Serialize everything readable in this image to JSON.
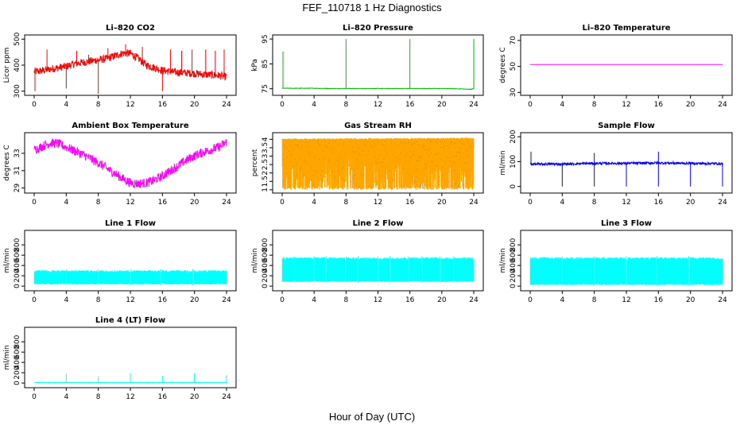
{
  "figure": {
    "title": "FEF_110718  1 Hz Diagnostics",
    "xlabel": "Hour of Day (UTC)"
  },
  "chart_data": [
    {
      "type": "line",
      "title": "Li–820 CO2",
      "ylabel": "Licor ppm",
      "color": "#ff0000",
      "xlim": [
        0,
        24
      ],
      "ylim": [
        290,
        510
      ],
      "yticks": [
        300,
        400,
        500
      ],
      "xticks": [
        0,
        4,
        8,
        12,
        16,
        20,
        24
      ],
      "series": [
        {
          "x": [
            0,
            1,
            2,
            3,
            4,
            5,
            6,
            7,
            8,
            9,
            10,
            11,
            12,
            13,
            14,
            15,
            16,
            17,
            18,
            19,
            20,
            21,
            22,
            23,
            24
          ],
          "values": [
            375,
            378,
            385,
            390,
            395,
            405,
            410,
            415,
            420,
            425,
            435,
            445,
            445,
            425,
            400,
            390,
            380,
            375,
            372,
            370,
            368,
            365,
            362,
            360,
            355
          ]
        }
      ],
      "spikes": [
        [
          0.1,
          300
        ],
        [
          1.6,
          460
        ],
        [
          4.0,
          310
        ],
        [
          5.3,
          455
        ],
        [
          6.8,
          440
        ],
        [
          8.0,
          290
        ],
        [
          9.2,
          465
        ],
        [
          11.4,
          480
        ],
        [
          13.5,
          470
        ],
        [
          16.0,
          300
        ],
        [
          17.0,
          460
        ],
        [
          18.4,
          455
        ],
        [
          19.7,
          460
        ],
        [
          21.4,
          460
        ],
        [
          22.6,
          455
        ],
        [
          23.7,
          460
        ]
      ],
      "noise": 15
    },
    {
      "type": "line",
      "title": "Li–820 Pressure",
      "ylabel": "kPa",
      "color": "#00bb00",
      "xlim": [
        0,
        24
      ],
      "ylim": [
        73,
        96
      ],
      "yticks": [
        75,
        85,
        95
      ],
      "xticks": [
        0,
        4,
        8,
        12,
        16,
        20,
        24
      ],
      "series": [
        {
          "x": [
            0,
            2,
            4,
            6,
            8,
            10,
            12,
            14,
            16,
            18,
            20,
            22,
            23.6,
            24
          ],
          "values": [
            75.2,
            75.2,
            75.2,
            75.1,
            75.1,
            75.1,
            75.1,
            75.1,
            75.1,
            75.1,
            75.1,
            75.0,
            74.8,
            75.0
          ]
        }
      ],
      "spikes": [
        [
          0.1,
          90
        ],
        [
          8.0,
          95
        ],
        [
          16.0,
          95
        ],
        [
          24.0,
          95
        ]
      ],
      "noise": 0.1
    },
    {
      "type": "line",
      "title": "Li–820 Temperature",
      "ylabel": "degrees C",
      "color": "#ff00ff",
      "xlim": [
        0,
        24
      ],
      "ylim": [
        29,
        73
      ],
      "yticks": [
        30,
        50,
        70
      ],
      "xticks": [
        0,
        4,
        8,
        12,
        16,
        20,
        24
      ],
      "series": [
        {
          "x": [
            0,
            24
          ],
          "values": [
            51.5,
            51.5
          ]
        }
      ],
      "spikes": [],
      "noise": 0
    },
    {
      "type": "line",
      "title": "Ambient Box Temperature",
      "ylabel": "degrees C",
      "color": "#ff00ff",
      "xlim": [
        0,
        24
      ],
      "ylim": [
        28.6,
        35.2
      ],
      "yticks": [
        29,
        31,
        33
      ],
      "xticks": [
        0,
        4,
        8,
        12,
        16,
        20,
        24
      ],
      "series": [
        {
          "x": [
            0,
            1,
            2,
            3,
            4,
            5,
            6,
            7,
            8,
            9,
            10,
            11,
            12,
            13,
            14,
            15,
            16,
            17,
            18,
            19,
            20,
            21,
            22,
            23,
            24
          ],
          "values": [
            33.4,
            33.8,
            34.2,
            34.1,
            33.7,
            33.3,
            32.9,
            32.4,
            31.9,
            31.3,
            30.7,
            30.1,
            29.6,
            29.5,
            29.6,
            29.9,
            30.4,
            31.0,
            31.6,
            32.2,
            32.7,
            33.1,
            33.4,
            33.7,
            34.3
          ]
        }
      ],
      "spikes": [],
      "noise": 0.55
    },
    {
      "type": "line",
      "title": "Gas Stream RH",
      "ylabel": "percent",
      "color": "#ffa500",
      "dots": "#bb8800",
      "xlim": [
        0,
        24
      ],
      "ylim": [
        0.9,
        4.3
      ],
      "yticks": [
        1.0,
        1.5,
        2.0,
        2.5,
        3.0,
        3.5,
        4.0
      ],
      "xticks": [
        0,
        4,
        8,
        12,
        16,
        20,
        24
      ],
      "series": [
        {
          "x": [
            0,
            24
          ],
          "values": [
            4.05,
            4.1
          ]
        }
      ],
      "spikes": [],
      "noise": 0.1,
      "drops_to": 1.0
    },
    {
      "type": "line",
      "title": "Sample Flow",
      "ylabel": "ml/min",
      "color": "#0000ff",
      "xlim": [
        0,
        24
      ],
      "ylim": [
        -20,
        210
      ],
      "yticks": [
        0,
        100,
        200
      ],
      "xticks": [
        0,
        4,
        8,
        12,
        16,
        20,
        24
      ],
      "series": [
        {
          "x": [
            0,
            4,
            8,
            12,
            16,
            20,
            24
          ],
          "values": [
            90,
            90,
            93,
            93,
            95,
            93,
            92
          ]
        }
      ],
      "spikes": [
        [
          0.1,
          140
        ],
        [
          4.0,
          0
        ],
        [
          8.0,
          135
        ],
        [
          8.0,
          0
        ],
        [
          12.0,
          0
        ],
        [
          16.0,
          140
        ],
        [
          16.0,
          0
        ],
        [
          20.0,
          0
        ],
        [
          24.0,
          0
        ]
      ],
      "noise": 5
    },
    {
      "type": "line",
      "title": "Line 1 Flow",
      "ylabel": "ml/min",
      "color": "#00ffff",
      "xlim": [
        0,
        24
      ],
      "ylim": [
        -60,
        1050
      ],
      "yticks": [
        0,
        200,
        400,
        600,
        800
      ],
      "xticks": [
        0,
        4,
        8,
        12,
        16,
        20,
        24
      ],
      "band": {
        "lo": 30,
        "hi": 310
      },
      "gaps": [
        4.0,
        8.0,
        12.0,
        15.8,
        19.8
      ]
    },
    {
      "type": "line",
      "title": "Line 2 Flow",
      "ylabel": "ml/min",
      "color": "#00ffff",
      "xlim": [
        0,
        24
      ],
      "ylim": [
        -60,
        1050
      ],
      "yticks": [
        0,
        200,
        400,
        600,
        800
      ],
      "xticks": [
        0,
        4,
        8,
        12,
        16,
        20,
        24
      ],
      "band": {
        "lo": 80,
        "hi": 560
      },
      "gaps": [
        1.5,
        4.0,
        5.5,
        8.0,
        9.5,
        12.0,
        13.5,
        15.8,
        17.5,
        19.8,
        21.5
      ]
    },
    {
      "type": "line",
      "title": "Line 3 Flow",
      "ylabel": "ml/min",
      "color": "#00ffff",
      "xlim": [
        0,
        24
      ],
      "ylim": [
        -60,
        1050
      ],
      "yticks": [
        0,
        200,
        400,
        600,
        800
      ],
      "xticks": [
        0,
        4,
        8,
        12,
        16,
        20,
        24
      ],
      "band": {
        "lo": 20,
        "hi": 560
      },
      "gaps": [
        4.0,
        8.0,
        12.0,
        15.8,
        19.8
      ]
    },
    {
      "type": "line",
      "title": "Line 4 (LT) Flow",
      "ylabel": "ml/min",
      "color": "#00ffff",
      "xlim": [
        0,
        24
      ],
      "ylim": [
        -60,
        1050
      ],
      "yticks": [
        0,
        200,
        400,
        600,
        800
      ],
      "xticks": [
        0,
        4,
        8,
        12,
        16,
        20,
        24
      ],
      "series": [
        {
          "x": [
            0,
            24
          ],
          "values": [
            10,
            10
          ]
        }
      ],
      "spikes": [
        [
          4.0,
          180
        ],
        [
          8.0,
          130
        ],
        [
          12.0,
          190
        ],
        [
          16.0,
          140
        ],
        [
          20.0,
          190
        ],
        [
          24.0,
          150
        ]
      ],
      "noise": 4
    }
  ]
}
